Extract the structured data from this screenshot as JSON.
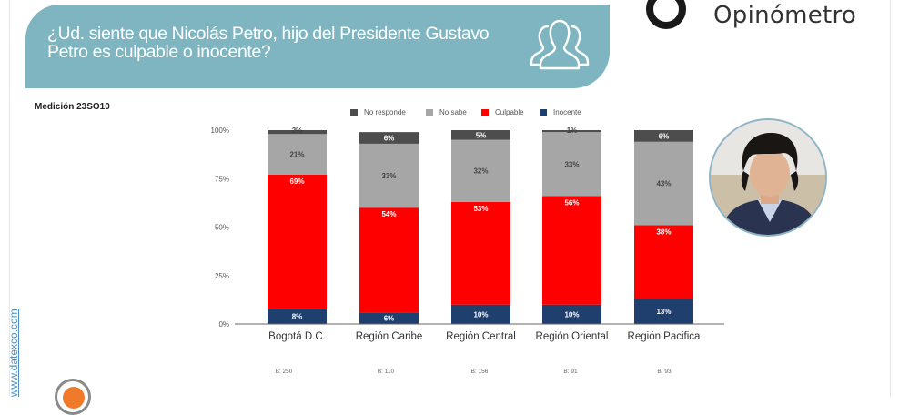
{
  "header": {
    "question": "¿Ud. siente que Nicolás Petro, hijo del Presidente Gustavo Petro es culpable o inocente?",
    "icon": "people-group-icon",
    "brand": "Opinómetro"
  },
  "measurement_label": "Medición 23SO10",
  "side_url": "www.datexco.com",
  "colors": {
    "banner": "#7fb5c1",
    "no_responde": "#4d4d4d",
    "no_sabe": "#a6a6a6",
    "culpable": "#ff0000",
    "inocente": "#1f3f6e"
  },
  "bases": [
    "B: 250",
    "B: 110",
    "B: 156",
    "B: 91",
    "B: 93"
  ],
  "chart_data": {
    "type": "bar",
    "stacked": true,
    "title": "",
    "xlabel": "",
    "ylabel": "",
    "ylim": [
      0,
      100
    ],
    "yticks": [
      "0%",
      "25%",
      "50%",
      "75%",
      "100%"
    ],
    "ytick_values": [
      0,
      25,
      50,
      75,
      100
    ],
    "grid": false,
    "legend_position": "top",
    "categories": [
      "Bogotá D.C.",
      "Región Caribe",
      "Región Central",
      "Región Oriental",
      "Región Pacifica"
    ],
    "series": [
      {
        "name": "Inocente",
        "color": "#1f3f6e",
        "label_color": "#ffffff",
        "values": [
          8,
          6,
          10,
          10,
          13
        ]
      },
      {
        "name": "Culpable",
        "color": "#ff0000",
        "label_color": "#ffffff",
        "values": [
          69,
          54,
          53,
          56,
          38
        ]
      },
      {
        "name": "No sabe",
        "color": "#a6a6a6",
        "label_color": "#444444",
        "values": [
          21,
          33,
          32,
          33,
          43
        ]
      },
      {
        "name": "No responde",
        "color": "#4d4d4d",
        "label_color": "#ffffff",
        "values": [
          2,
          6,
          5,
          1,
          6
        ]
      }
    ],
    "legend_order": [
      "No responde",
      "No sabe",
      "Culpable",
      "Inocente"
    ]
  }
}
